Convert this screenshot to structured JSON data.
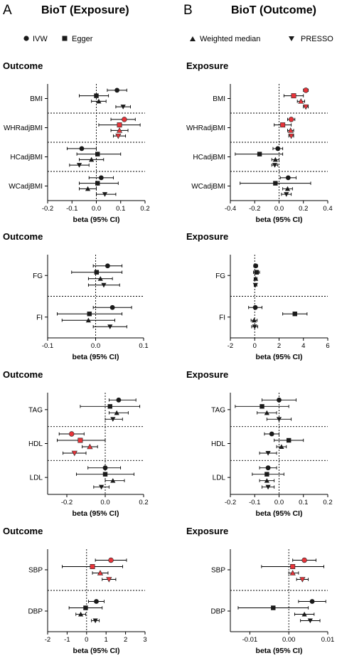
{
  "header": {
    "left_letter": "A",
    "right_letter": "B",
    "left_title": "BioT (Exposure)",
    "right_title": "BioT (Outcome)"
  },
  "legend": {
    "items": [
      {
        "label": "IVW",
        "marker": "circle"
      },
      {
        "label": "Egger",
        "marker": "square"
      },
      {
        "label": "Weighted median",
        "marker": "triangle-up"
      },
      {
        "label": "PRESSO",
        "marker": "triangle-down"
      }
    ]
  },
  "colors": {
    "significant": "#e8343a",
    "default": "#1a1a1a"
  },
  "chart_data": [
    {
      "type": "scatter",
      "panel": "A1",
      "section_title": "Outcome",
      "xlabel": "beta (95% CI)",
      "xlim": [
        -0.2,
        0.2
      ],
      "xticks": [
        "-0.2",
        "-0.1",
        "0.0",
        "0.1",
        "0.2"
      ],
      "groups": [
        {
          "label": "BMI",
          "estimates": [
            {
              "method": "IVW",
              "beta": 0.085,
              "lo": 0.045,
              "hi": 0.125,
              "sig": false
            },
            {
              "method": "Egger",
              "beta": 0.0,
              "lo": -0.07,
              "hi": 0.05,
              "sig": false
            },
            {
              "method": "Weighted median",
              "beta": 0.01,
              "lo": -0.02,
              "hi": 0.04,
              "sig": false
            },
            {
              "method": "PRESSO",
              "beta": 0.11,
              "lo": 0.08,
              "hi": 0.14,
              "sig": false
            }
          ]
        },
        {
          "label": "WHRadjBMI",
          "estimates": [
            {
              "method": "IVW",
              "beta": 0.115,
              "lo": 0.06,
              "hi": 0.16,
              "sig": true
            },
            {
              "method": "Egger",
              "beta": 0.095,
              "lo": 0.01,
              "hi": 0.18,
              "sig": true
            },
            {
              "method": "Weighted median",
              "beta": 0.095,
              "lo": 0.06,
              "hi": 0.13,
              "sig": true
            },
            {
              "method": "PRESSO",
              "beta": 0.09,
              "lo": 0.07,
              "hi": 0.12,
              "sig": true
            }
          ]
        },
        {
          "label": "HCadjBMI",
          "estimates": [
            {
              "method": "IVW",
              "beta": -0.06,
              "lo": -0.12,
              "hi": 0.0,
              "sig": false
            },
            {
              "method": "Egger",
              "beta": 0.005,
              "lo": -0.08,
              "hi": 0.1,
              "sig": false
            },
            {
              "method": "Weighted median",
              "beta": -0.02,
              "lo": -0.07,
              "hi": 0.03,
              "sig": false
            },
            {
              "method": "PRESSO",
              "beta": -0.07,
              "lo": -0.11,
              "hi": -0.03,
              "sig": false
            }
          ]
        },
        {
          "label": "WCadjBMI",
          "estimates": [
            {
              "method": "IVW",
              "beta": 0.02,
              "lo": -0.03,
              "hi": 0.07,
              "sig": false
            },
            {
              "method": "Egger",
              "beta": 0.005,
              "lo": -0.07,
              "hi": 0.09,
              "sig": false
            },
            {
              "method": "Weighted median",
              "beta": -0.035,
              "lo": -0.07,
              "hi": 0.0,
              "sig": false
            },
            {
              "method": "PRESSO",
              "beta": 0.035,
              "lo": 0.0,
              "hi": 0.08,
              "sig": false
            }
          ]
        }
      ]
    },
    {
      "type": "scatter",
      "panel": "B1",
      "section_title": "Exposure",
      "xlabel": "beta (95% CI)",
      "xlim": [
        -0.4,
        0.4
      ],
      "xticks": [
        "-0.4",
        "-0.2",
        "0.0",
        "0.2",
        "0.4"
      ],
      "groups": [
        {
          "label": "BMI",
          "estimates": [
            {
              "method": "IVW",
              "beta": 0.22,
              "lo": 0.2,
              "hi": 0.24,
              "sig": true
            },
            {
              "method": "Egger",
              "beta": 0.12,
              "lo": 0.04,
              "hi": 0.2,
              "sig": true
            },
            {
              "method": "Weighted median",
              "beta": 0.18,
              "lo": 0.15,
              "hi": 0.21,
              "sig": true
            },
            {
              "method": "PRESSO",
              "beta": 0.22,
              "lo": 0.2,
              "hi": 0.24,
              "sig": true
            }
          ]
        },
        {
          "label": "WHRadjBMI",
          "estimates": [
            {
              "method": "IVW",
              "beta": 0.1,
              "lo": 0.07,
              "hi": 0.13,
              "sig": true
            },
            {
              "method": "Egger",
              "beta": 0.03,
              "lo": -0.04,
              "hi": 0.1,
              "sig": true
            },
            {
              "method": "Weighted median",
              "beta": 0.095,
              "lo": 0.07,
              "hi": 0.12,
              "sig": true
            },
            {
              "method": "PRESSO",
              "beta": 0.1,
              "lo": 0.08,
              "hi": 0.12,
              "sig": true
            }
          ]
        },
        {
          "label": "HCadjBMI",
          "estimates": [
            {
              "method": "IVW",
              "beta": -0.01,
              "lo": -0.05,
              "hi": 0.03,
              "sig": false
            },
            {
              "method": "Egger",
              "beta": -0.16,
              "lo": -0.36,
              "hi": 0.03,
              "sig": false
            },
            {
              "method": "Weighted median",
              "beta": -0.03,
              "lo": -0.06,
              "hi": 0.0,
              "sig": false
            },
            {
              "method": "PRESSO",
              "beta": -0.035,
              "lo": -0.06,
              "hi": -0.01,
              "sig": false
            }
          ]
        },
        {
          "label": "WCadjBMI",
          "estimates": [
            {
              "method": "IVW",
              "beta": 0.075,
              "lo": 0.01,
              "hi": 0.14,
              "sig": false
            },
            {
              "method": "Egger",
              "beta": -0.03,
              "lo": -0.32,
              "hi": 0.26,
              "sig": false
            },
            {
              "method": "Weighted median",
              "beta": 0.07,
              "lo": 0.03,
              "hi": 0.11,
              "sig": false
            },
            {
              "method": "PRESSO",
              "beta": 0.06,
              "lo": 0.02,
              "hi": 0.1,
              "sig": false
            }
          ]
        }
      ]
    },
    {
      "type": "scatter",
      "panel": "A2",
      "section_title": "Outcome",
      "xlabel": "beta (95% CI)",
      "xlim": [
        -0.1,
        0.1
      ],
      "xticks": [
        "-0.1",
        "0.0",
        "0.1"
      ],
      "groups": [
        {
          "label": "FG",
          "estimates": [
            {
              "method": "IVW",
              "beta": 0.025,
              "lo": -0.005,
              "hi": 0.055,
              "sig": false
            },
            {
              "method": "Egger",
              "beta": 0.002,
              "lo": -0.05,
              "hi": 0.055,
              "sig": false
            },
            {
              "method": "Weighted median",
              "beta": 0.01,
              "lo": -0.015,
              "hi": 0.035,
              "sig": false
            },
            {
              "method": "PRESSO",
              "beta": 0.017,
              "lo": -0.015,
              "hi": 0.05,
              "sig": false
            }
          ]
        },
        {
          "label": "FI",
          "estimates": [
            {
              "method": "IVW",
              "beta": 0.035,
              "lo": -0.005,
              "hi": 0.075,
              "sig": false
            },
            {
              "method": "Egger",
              "beta": -0.013,
              "lo": -0.08,
              "hi": 0.055,
              "sig": false
            },
            {
              "method": "Weighted median",
              "beta": -0.015,
              "lo": -0.07,
              "hi": 0.04,
              "sig": false
            },
            {
              "method": "PRESSO",
              "beta": 0.03,
              "lo": -0.005,
              "hi": 0.065,
              "sig": false
            }
          ]
        }
      ]
    },
    {
      "type": "scatter",
      "panel": "B2",
      "section_title": "Exposure",
      "xlabel": "beta (95% CI)",
      "xlim": [
        -2,
        6
      ],
      "xticks": [
        "-2",
        "0",
        "2",
        "4",
        "6"
      ],
      "groups": [
        {
          "label": "FG",
          "estimates": [
            {
              "method": "IVW",
              "beta": 0.08,
              "lo": -0.08,
              "hi": 0.24,
              "sig": false
            },
            {
              "method": "Egger",
              "beta": 0.15,
              "lo": -0.1,
              "hi": 0.4,
              "sig": false
            },
            {
              "method": "Weighted median",
              "beta": 0.08,
              "lo": -0.05,
              "hi": 0.2,
              "sig": false
            },
            {
              "method": "PRESSO",
              "beta": 0.06,
              "lo": -0.05,
              "hi": 0.18,
              "sig": false
            }
          ]
        },
        {
          "label": "FI",
          "estimates": [
            {
              "method": "IVW",
              "beta": 0.05,
              "lo": -0.5,
              "hi": 0.6,
              "sig": false
            },
            {
              "method": "Egger",
              "beta": 3.3,
              "lo": 2.3,
              "hi": 4.3,
              "sig": false
            },
            {
              "method": "Weighted median",
              "beta": -0.05,
              "lo": -0.3,
              "hi": 0.2,
              "sig": false
            },
            {
              "method": "PRESSO",
              "beta": 0.0,
              "lo": -0.25,
              "hi": 0.25,
              "sig": false
            }
          ]
        }
      ]
    },
    {
      "type": "scatter",
      "panel": "A3",
      "section_title": "Outcome",
      "xlabel": "beta (95% CI)",
      "xlim": [
        -0.3,
        0.2
      ],
      "xticks": [
        "-0.2",
        "0.0",
        "0.2"
      ],
      "groups": [
        {
          "label": "TAG",
          "estimates": [
            {
              "method": "IVW",
              "beta": 0.07,
              "lo": 0.02,
              "hi": 0.16,
              "sig": false
            },
            {
              "method": "Egger",
              "beta": 0.025,
              "lo": -0.13,
              "hi": 0.18,
              "sig": false
            },
            {
              "method": "Weighted median",
              "beta": 0.06,
              "lo": 0.02,
              "hi": 0.12,
              "sig": false
            },
            {
              "method": "PRESSO",
              "beta": 0.04,
              "lo": 0.0,
              "hi": 0.09,
              "sig": false
            }
          ]
        },
        {
          "label": "HDL",
          "estimates": [
            {
              "method": "IVW",
              "beta": -0.175,
              "lo": -0.24,
              "hi": -0.11,
              "sig": true
            },
            {
              "method": "Egger",
              "beta": -0.13,
              "lo": -0.25,
              "hi": 0.0,
              "sig": true
            },
            {
              "method": "Weighted median",
              "beta": -0.08,
              "lo": -0.12,
              "hi": -0.04,
              "sig": true
            },
            {
              "method": "PRESSO",
              "beta": -0.16,
              "lo": -0.22,
              "hi": -0.1,
              "sig": true
            }
          ]
        },
        {
          "label": "LDL",
          "estimates": [
            {
              "method": "IVW",
              "beta": 0.0,
              "lo": -0.09,
              "hi": 0.08,
              "sig": false
            },
            {
              "method": "Egger",
              "beta": 0.0,
              "lo": -0.15,
              "hi": 0.15,
              "sig": false
            },
            {
              "method": "Weighted median",
              "beta": 0.04,
              "lo": 0.0,
              "hi": 0.1,
              "sig": false
            },
            {
              "method": "PRESSO",
              "beta": -0.02,
              "lo": -0.06,
              "hi": 0.02,
              "sig": false
            }
          ]
        }
      ]
    },
    {
      "type": "scatter",
      "panel": "B3",
      "section_title": "Exposure",
      "xlabel": "beta (95% CI)",
      "xlim": [
        -0.2,
        0.2
      ],
      "xticks": [
        "-0.2",
        "-0.1",
        "0.0",
        "0.1",
        "0.2"
      ],
      "groups": [
        {
          "label": "TAG",
          "estimates": [
            {
              "method": "IVW",
              "beta": 0.0,
              "lo": -0.07,
              "hi": 0.07,
              "sig": false
            },
            {
              "method": "Egger",
              "beta": -0.07,
              "lo": -0.18,
              "hi": 0.04,
              "sig": false
            },
            {
              "method": "Weighted median",
              "beta": -0.05,
              "lo": -0.09,
              "hi": -0.01,
              "sig": false
            },
            {
              "method": "PRESSO",
              "beta": 0.0,
              "lo": -0.05,
              "hi": 0.05,
              "sig": false
            }
          ]
        },
        {
          "label": "HDL",
          "estimates": [
            {
              "method": "IVW",
              "beta": -0.03,
              "lo": -0.06,
              "hi": 0.0,
              "sig": false
            },
            {
              "method": "Egger",
              "beta": 0.04,
              "lo": -0.02,
              "hi": 0.1,
              "sig": false
            },
            {
              "method": "Weighted median",
              "beta": 0.01,
              "lo": -0.01,
              "hi": 0.03,
              "sig": false
            },
            {
              "method": "PRESSO",
              "beta": -0.045,
              "lo": -0.08,
              "hi": -0.01,
              "sig": false
            }
          ]
        },
        {
          "label": "LDL",
          "estimates": [
            {
              "method": "IVW",
              "beta": -0.045,
              "lo": -0.08,
              "hi": -0.01,
              "sig": false
            },
            {
              "method": "Egger",
              "beta": -0.05,
              "lo": -0.11,
              "hi": 0.02,
              "sig": false
            },
            {
              "method": "Weighted median",
              "beta": -0.05,
              "lo": -0.08,
              "hi": -0.02,
              "sig": false
            },
            {
              "method": "PRESSO",
              "beta": -0.045,
              "lo": -0.07,
              "hi": -0.02,
              "sig": false
            }
          ]
        }
      ]
    },
    {
      "type": "scatter",
      "panel": "A4",
      "section_title": "Outcome",
      "xlabel": "beta (95% CI)",
      "xlim": [
        -2,
        3
      ],
      "xticks": [
        "-2",
        "-1",
        "0",
        "1",
        "2",
        "3"
      ],
      "groups": [
        {
          "label": "SBP",
          "estimates": [
            {
              "method": "IVW",
              "beta": 1.25,
              "lo": 0.45,
              "hi": 2.05,
              "sig": true
            },
            {
              "method": "Egger",
              "beta": 0.3,
              "lo": -1.25,
              "hi": 1.85,
              "sig": true
            },
            {
              "method": "Weighted median",
              "beta": 0.7,
              "lo": 0.3,
              "hi": 1.1,
              "sig": true
            },
            {
              "method": "PRESSO",
              "beta": 1.15,
              "lo": 0.8,
              "hi": 1.5,
              "sig": true
            }
          ]
        },
        {
          "label": "DBP",
          "estimates": [
            {
              "method": "IVW",
              "beta": 0.5,
              "lo": 0.1,
              "hi": 0.9,
              "sig": false
            },
            {
              "method": "Egger",
              "beta": -0.05,
              "lo": -0.9,
              "hi": 0.8,
              "sig": false
            },
            {
              "method": "Weighted median",
              "beta": -0.3,
              "lo": -0.55,
              "hi": -0.05,
              "sig": false
            },
            {
              "method": "PRESSO",
              "beta": 0.45,
              "lo": 0.25,
              "hi": 0.65,
              "sig": false
            }
          ]
        }
      ]
    },
    {
      "type": "scatter",
      "panel": "B4",
      "section_title": "Exposure",
      "xlabel": "beta (95% CI)",
      "xlim": [
        -0.015,
        0.01
      ],
      "xticks": [
        "-0.01",
        "0.00",
        "0.01"
      ],
      "groups": [
        {
          "label": "SBP",
          "estimates": [
            {
              "method": "IVW",
              "beta": 0.004,
              "lo": 0.001,
              "hi": 0.007,
              "sig": true
            },
            {
              "method": "Egger",
              "beta": 0.001,
              "lo": -0.007,
              "hi": 0.009,
              "sig": true
            },
            {
              "method": "Weighted median",
              "beta": 0.001,
              "lo": 0.0,
              "hi": 0.0025,
              "sig": true
            },
            {
              "method": "PRESSO",
              "beta": 0.0035,
              "lo": 0.002,
              "hi": 0.005,
              "sig": true
            }
          ]
        },
        {
          "label": "DBP",
          "estimates": [
            {
              "method": "IVW",
              "beta": 0.006,
              "lo": 0.0025,
              "hi": 0.0095,
              "sig": false
            },
            {
              "method": "Egger",
              "beta": -0.004,
              "lo": -0.013,
              "hi": 0.005,
              "sig": false
            },
            {
              "method": "Weighted median",
              "beta": 0.004,
              "lo": 0.0015,
              "hi": 0.0065,
              "sig": false
            },
            {
              "method": "PRESSO",
              "beta": 0.0055,
              "lo": 0.003,
              "hi": 0.008,
              "sig": false
            }
          ]
        }
      ]
    }
  ]
}
